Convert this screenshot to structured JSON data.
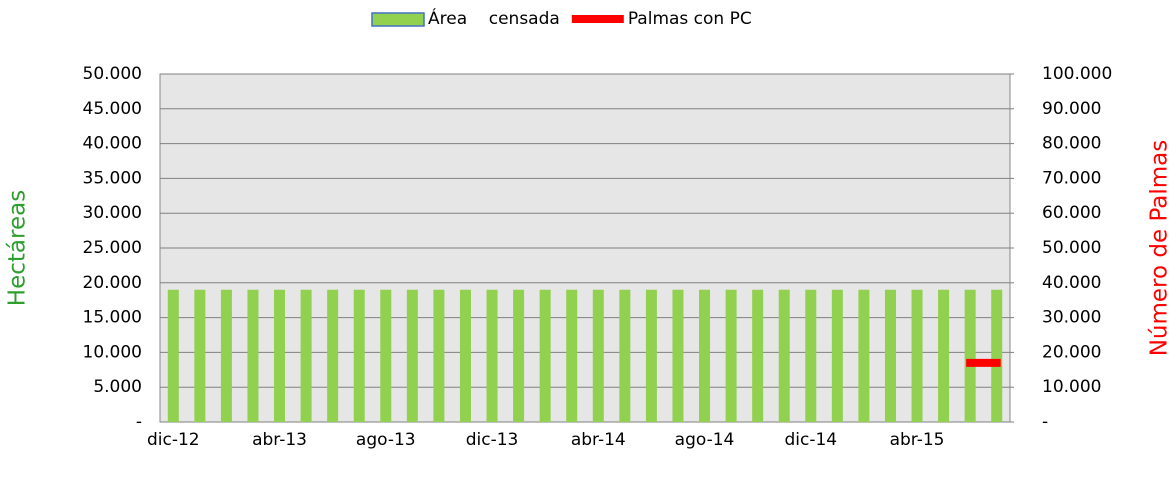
{
  "chart_data": {
    "type": "bar_line",
    "y_label": "Hectáreas",
    "y2_label": "Número de Palmas",
    "categories": [
      "dic-12",
      null,
      null,
      null,
      "abr-13",
      null,
      null,
      null,
      "ago-13",
      null,
      null,
      null,
      "dic-13",
      null,
      null,
      null,
      "abr-14",
      null,
      null,
      null,
      "ago-14",
      null,
      null,
      null,
      "dic-14",
      null,
      null,
      null,
      "abr-15",
      null,
      null,
      null
    ],
    "series": [
      {
        "name": "Área    censada",
        "type": "bar",
        "color": "#92d050",
        "values": [
          19000,
          19000,
          19000,
          19000,
          19000,
          19000,
          19000,
          19000,
          19000,
          19000,
          19000,
          19000,
          19000,
          19000,
          19000,
          19000,
          19000,
          19000,
          19000,
          19000,
          19000,
          19000,
          19000,
          19000,
          19000,
          19000,
          19000,
          19000,
          19000,
          19000,
          19000,
          19000
        ]
      },
      {
        "name": "Palmas con PC",
        "type": "line",
        "axis": "y2",
        "color": "#ff0000",
        "values": [
          null,
          null,
          null,
          null,
          null,
          null,
          null,
          null,
          null,
          null,
          null,
          null,
          null,
          null,
          null,
          null,
          null,
          null,
          null,
          null,
          null,
          null,
          null,
          null,
          null,
          null,
          null,
          null,
          null,
          null,
          17000,
          17000
        ]
      }
    ],
    "ylim": [
      0,
      50000
    ],
    "yticks": [
      {
        "value": 0,
        "label": "-"
      },
      {
        "value": 5000,
        "label": "5.000"
      },
      {
        "value": 10000,
        "label": "10.000"
      },
      {
        "value": 15000,
        "label": "15.000"
      },
      {
        "value": 20000,
        "label": "20.000"
      },
      {
        "value": 25000,
        "label": "25.000"
      },
      {
        "value": 30000,
        "label": "30.000"
      },
      {
        "value": 35000,
        "label": "35.000"
      },
      {
        "value": 40000,
        "label": "40.000"
      },
      {
        "value": 45000,
        "label": "45.000"
      },
      {
        "value": 50000,
        "label": "50.000"
      }
    ],
    "y2lim": [
      0,
      100000
    ],
    "y2ticks": [
      {
        "value": 0,
        "label": "-"
      },
      {
        "value": 10000,
        "label": "10.000"
      },
      {
        "value": 20000,
        "label": "20.000"
      },
      {
        "value": 30000,
        "label": "30.000"
      },
      {
        "value": 40000,
        "label": "40.000"
      },
      {
        "value": 50000,
        "label": "50.000"
      },
      {
        "value": 60000,
        "label": "60.000"
      },
      {
        "value": 70000,
        "label": "70.000"
      },
      {
        "value": 80000,
        "label": "80.000"
      },
      {
        "value": 90000,
        "label": "90.000"
      },
      {
        "value": 100000,
        "label": "100.000"
      }
    ],
    "grid": true,
    "legend": "top"
  }
}
